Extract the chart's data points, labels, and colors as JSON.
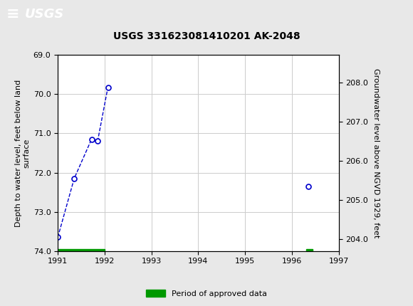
{
  "title": "USGS 331623081410201 AK-2048",
  "header_bg": "#006633",
  "xlim": [
    1991,
    1997
  ],
  "xticks": [
    1991,
    1992,
    1993,
    1994,
    1995,
    1996,
    1997
  ],
  "ylim_left_bottom": 74.0,
  "ylim_left_top": 69.0,
  "yticks_left": [
    69.0,
    70.0,
    71.0,
    72.0,
    73.0,
    74.0
  ],
  "yticks_right": [
    204.0,
    205.0,
    206.0,
    207.0,
    208.0
  ],
  "ylim_right_bottom": 203.7,
  "ylim_right_top": 208.7,
  "ylabel_left": "Depth to water level, feet below land\nsurface",
  "ylabel_right": "Groundwater level above NGVD 1929, feet",
  "line_x": [
    1991.0,
    1991.35,
    1991.72,
    1991.85,
    1992.07
  ],
  "line_y": [
    73.65,
    72.15,
    71.15,
    71.2,
    69.82
  ],
  "solo_x": [
    1996.35
  ],
  "solo_y": [
    72.35
  ],
  "line_color": "#0000cc",
  "marker_facecolor": "white",
  "marker_edgecolor": "#0000cc",
  "marker_size": 5,
  "green_bars": [
    {
      "x_start": 1991.0,
      "x_end": 1992.0
    },
    {
      "x_start": 1996.3,
      "x_end": 1996.45
    }
  ],
  "green_bar_y": 74.05,
  "green_bar_height": 0.2,
  "green_color": "#009900",
  "legend_label": "Period of approved data",
  "grid_color": "#cccccc",
  "bg_color": "#e8e8e8",
  "plot_bg": "#ffffff"
}
